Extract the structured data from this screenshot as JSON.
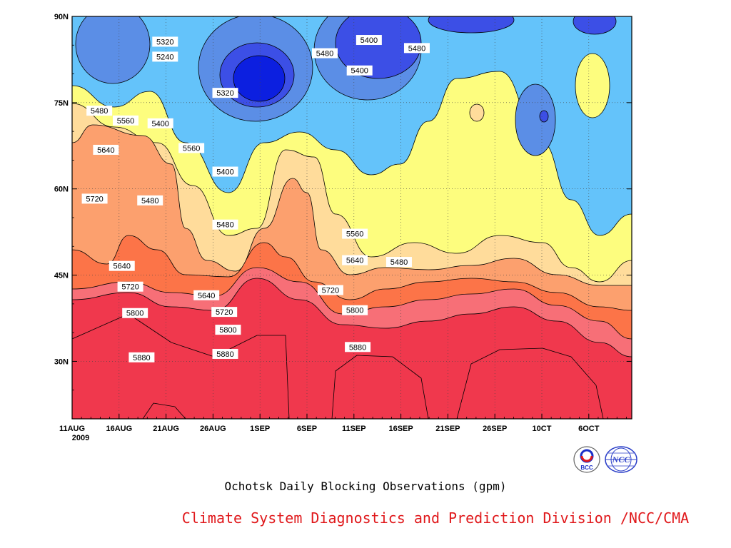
{
  "chart_data": {
    "type": "contour",
    "title": "",
    "subtitle": "Ochotsk Daily Blocking Observations (gpm)",
    "credit": "Climate System Diagnostics and Prediction Division /NCC/CMA",
    "x_ticks": [
      {
        "label": "11AUG",
        "sub": "2009"
      },
      {
        "label": "16AUG"
      },
      {
        "label": "21AUG"
      },
      {
        "label": "26AUG"
      },
      {
        "label": "1SEP"
      },
      {
        "label": "6SEP"
      },
      {
        "label": "11SEP"
      },
      {
        "label": "16SEP"
      },
      {
        "label": "21SEP"
      },
      {
        "label": "26SEP"
      },
      {
        "label": "10CT"
      },
      {
        "label": "6OCT"
      }
    ],
    "y_ticks": [
      "30N",
      "45N",
      "60N",
      "75N",
      "90N"
    ],
    "ylim_deg": [
      20,
      90
    ],
    "levels": [
      5240,
      5320,
      5400,
      5480,
      5560,
      5640,
      5720,
      5800,
      5880
    ],
    "level_colors": [
      "#0c1fe0",
      "#3c4fe6",
      "#5b8ee6",
      "#64c3fa",
      "#fdfd7e",
      "#ffdc9b",
      "#fca06e",
      "#fc7448",
      "#f76f77",
      "#f0384d"
    ],
    "contour_labels": [
      {
        "t": "5320",
        "day": 9.9,
        "lat": 85.6
      },
      {
        "t": "5240",
        "day": 9.9,
        "lat": 83.0
      },
      {
        "t": "5480",
        "day": 2.9,
        "lat": 73.6
      },
      {
        "t": "5560",
        "day": 5.7,
        "lat": 71.9
      },
      {
        "t": "5640",
        "day": 3.6,
        "lat": 66.8
      },
      {
        "t": "5720",
        "day": 2.4,
        "lat": 58.3
      },
      {
        "t": "5400",
        "day": 9.4,
        "lat": 71.4
      },
      {
        "t": "5560",
        "day": 12.7,
        "lat": 67.1
      },
      {
        "t": "5480",
        "day": 8.3,
        "lat": 58.0
      },
      {
        "t": "5640",
        "day": 5.3,
        "lat": 46.6
      },
      {
        "t": "5720",
        "day": 6.2,
        "lat": 43.0
      },
      {
        "t": "5800",
        "day": 6.7,
        "lat": 38.4
      },
      {
        "t": "5880",
        "day": 7.4,
        "lat": 30.7
      },
      {
        "t": "5320",
        "day": 16.3,
        "lat": 76.7
      },
      {
        "t": "5400",
        "day": 16.3,
        "lat": 63.0
      },
      {
        "t": "5480",
        "day": 16.3,
        "lat": 53.8
      },
      {
        "t": "5640",
        "day": 14.3,
        "lat": 41.5
      },
      {
        "t": "5720",
        "day": 16.2,
        "lat": 38.6
      },
      {
        "t": "5800",
        "day": 16.6,
        "lat": 35.5
      },
      {
        "t": "5880",
        "day": 16.3,
        "lat": 31.3
      },
      {
        "t": "5480",
        "day": 26.9,
        "lat": 83.6
      },
      {
        "t": "5400",
        "day": 31.6,
        "lat": 85.9
      },
      {
        "t": "5400",
        "day": 30.6,
        "lat": 80.6
      },
      {
        "t": "5480",
        "day": 36.7,
        "lat": 84.5
      },
      {
        "t": "5560",
        "day": 30.1,
        "lat": 52.2
      },
      {
        "t": "5640",
        "day": 30.1,
        "lat": 47.6
      },
      {
        "t": "5720",
        "day": 27.5,
        "lat": 42.4
      },
      {
        "t": "5800",
        "day": 30.1,
        "lat": 38.9
      },
      {
        "t": "5880",
        "day": 30.4,
        "lat": 32.5
      },
      {
        "t": "5480",
        "day": 34.8,
        "lat": 47.3
      }
    ]
  }
}
